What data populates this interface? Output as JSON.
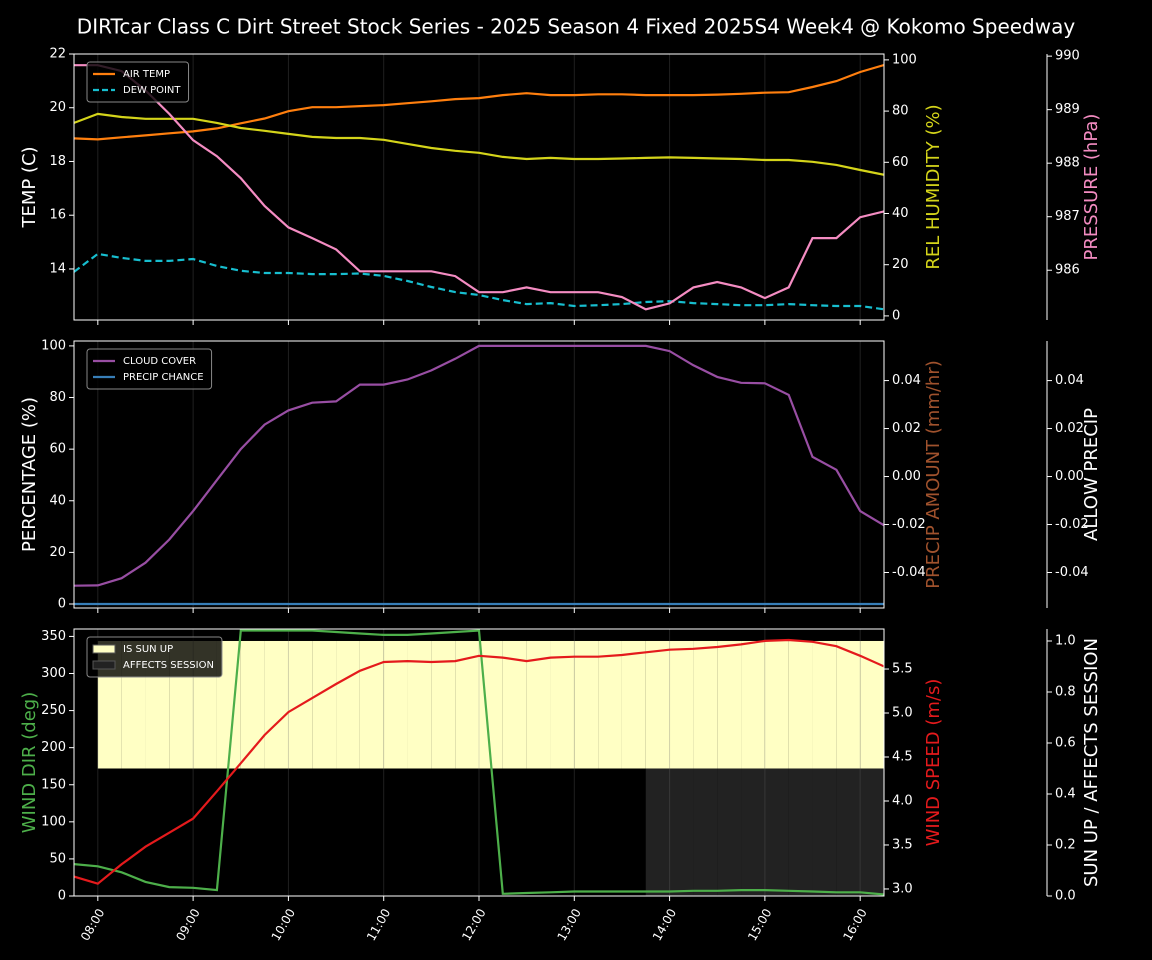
{
  "title": "DIRTcar Class C Dirt Street Stock Series - 2025 Season 4 Fixed 2025S4 Week4 @ Kokomo Speedway",
  "chart_data": [
    {
      "type": "line",
      "legend": "upper left",
      "grid": true,
      "ylabel": "TEMP (C)",
      "ylabel_color": "#ffffff",
      "y2label": "REL HUMIDITY (%)",
      "y2label_color": "#d4d41a",
      "y3label": "PRESSURE (hPa)",
      "y3label_color": "#f48cc2",
      "ylim": [
        12.1,
        22
      ],
      "yticks": [
        14,
        16,
        18,
        20,
        22
      ],
      "y2lim": [
        -1.6,
        102.3
      ],
      "y2ticks": [
        0,
        20,
        40,
        60,
        80,
        100
      ],
      "y3lim": [
        985.07,
        990.04
      ],
      "y3ticks": [
        986,
        987,
        988,
        989,
        990
      ],
      "series": [
        {
          "name": "AIR TEMP",
          "color": "#ff7f0e",
          "axis": "y",
          "linestyle": "solid",
          "values": [
            18.86,
            18.82,
            18.9,
            18.97,
            19.05,
            19.12,
            19.23,
            19.42,
            19.6,
            19.87,
            20.02,
            20.02,
            20.06,
            20.1,
            20.17,
            20.24,
            20.32,
            20.36,
            20.47,
            20.54,
            20.47,
            20.47,
            20.5,
            20.5,
            20.47,
            20.47,
            20.47,
            20.49,
            20.52,
            20.56,
            20.58,
            20.77,
            20.99,
            21.33,
            21.59
          ]
        },
        {
          "name": "DEW POINT",
          "color": "#17becf",
          "axis": "y",
          "linestyle": "dashed",
          "values": [
            13.89,
            14.56,
            14.41,
            14.3,
            14.3,
            14.37,
            14.11,
            13.93,
            13.85,
            13.85,
            13.81,
            13.81,
            13.83,
            13.74,
            13.55,
            13.33,
            13.14,
            13.03,
            12.84,
            12.69,
            12.73,
            12.62,
            12.65,
            12.69,
            12.77,
            12.8,
            12.73,
            12.69,
            12.65,
            12.65,
            12.69,
            12.65,
            12.62,
            12.62,
            12.5
          ]
        },
        {
          "color": "#d4d41a",
          "axis": "y2",
          "linestyle": "solid",
          "values": [
            75.4,
            78.9,
            77.7,
            77,
            77,
            77,
            75.4,
            73.4,
            72.3,
            71.1,
            69.9,
            69.5,
            69.5,
            68.8,
            67.2,
            65.6,
            64.5,
            63.7,
            62.1,
            61.3,
            61.7,
            61.3,
            61.3,
            61.5,
            61.7,
            61.9,
            61.7,
            61.5,
            61.3,
            60.9,
            60.9,
            60.2,
            59,
            57,
            55.1
          ]
        },
        {
          "color": "#f48cc2",
          "axis": "y3",
          "linestyle": "solid",
          "values": [
            989.83,
            989.83,
            989.72,
            989.36,
            988.92,
            988.43,
            988.13,
            987.72,
            987.2,
            986.8,
            986.6,
            986.39,
            985.98,
            985.98,
            985.98,
            985.98,
            985.89,
            985.59,
            985.59,
            985.68,
            985.59,
            985.59,
            985.59,
            985.5,
            985.27,
            985.38,
            985.68,
            985.78,
            985.68,
            985.48,
            985.68,
            986.6,
            986.6,
            986.99,
            987.1
          ]
        }
      ]
    },
    {
      "type": "line",
      "legend": "upper left",
      "grid": true,
      "ylabel": "PERCENTAGE (%)",
      "ylabel_color": "#ffffff",
      "y2label": "PRECIP AMOUNT (mm/hr)",
      "y2label_color": "#a0522d",
      "y3label": "ALLOW PRECIP",
      "y3label_color": "#ffffff",
      "ylim": [
        -1.55,
        101.9
      ],
      "yticks": [
        0,
        20,
        40,
        60,
        80,
        100
      ],
      "y2lim": [
        -0.0548,
        0.0565
      ],
      "y2ticks": [
        -0.04,
        -0.02,
        {
          "value": 0,
          "label": "0.00"
        },
        0.02,
        0.04
      ],
      "y3lim": [
        -0.0548,
        0.0565
      ],
      "y3ticks": [
        -0.04,
        -0.02,
        {
          "value": 0,
          "label": "0.00"
        },
        0.02,
        0.04
      ],
      "series": [
        {
          "name": "CLOUD COVER",
          "color": "#984ea3",
          "axis": "y",
          "linestyle": "solid",
          "values": [
            7.08,
            7.2,
            10,
            16,
            25,
            36,
            48,
            60,
            69.5,
            75,
            78,
            78.5,
            85,
            85,
            87,
            90.5,
            95,
            100,
            100,
            100,
            100,
            100,
            100,
            100,
            100,
            98,
            92.5,
            88,
            85.7,
            85.5,
            81,
            57,
            52,
            36,
            30.5
          ]
        },
        {
          "name": "PRECIP CHANCE",
          "color": "#377eb8",
          "axis": "y",
          "linestyle": "solid",
          "values": [
            0,
            0,
            0,
            0,
            0,
            0,
            0,
            0,
            0,
            0,
            0,
            0,
            0,
            0,
            0,
            0,
            0,
            0,
            0,
            0,
            0,
            0,
            0,
            0,
            0,
            0,
            0,
            0,
            0,
            0,
            0,
            0,
            0,
            0,
            0
          ]
        }
      ]
    },
    {
      "type": "line",
      "legend": "upper left",
      "grid": true,
      "ylabel": "WIND DIR (deg)",
      "ylabel_color": "#4daf4a",
      "y2label": "WIND SPEED (m/s)",
      "y2label_color": "#e41a1c",
      "y3label": "SUN UP / AFFECTS SESSION",
      "y3label_color": "#ffffff",
      "x": [
        null,
        "08:00",
        null,
        null,
        null,
        "09:00",
        null,
        null,
        null,
        "10:00",
        null,
        null,
        null,
        "11:00",
        null,
        null,
        null,
        "12:00",
        null,
        null,
        null,
        "13:00",
        null,
        null,
        null,
        "14:00",
        null,
        null,
        null,
        "15:00",
        null,
        null,
        null,
        "16:00",
        null
      ],
      "ylim": [
        0,
        360
      ],
      "yticks": [
        0,
        50,
        100,
        150,
        200,
        250,
        300,
        350
      ],
      "y2lim": [
        2.92,
        5.955
      ],
      "y2ticks": [
        {
          "value": 3,
          "label": "3.0"
        },
        3.5,
        {
          "value": 4,
          "label": "4.0"
        },
        4.5,
        {
          "value": 5,
          "label": "5.0"
        },
        5.5
      ],
      "y3lim": [
        0,
        1.047
      ],
      "y3ticks": [
        {
          "value": 0,
          "label": "0.0"
        },
        0.2,
        0.4,
        0.6,
        0.8,
        {
          "value": 1,
          "label": "1.0"
        }
      ],
      "series": [
        {
          "name": "IS SUN UP",
          "type": "fill",
          "color": "#ffffc4",
          "axis": "y3",
          "values": [
            0,
            1,
            1,
            1,
            1,
            1,
            1,
            1,
            1,
            1,
            1,
            1,
            1,
            1,
            1,
            1,
            1,
            1,
            1,
            1,
            1,
            1,
            1,
            1,
            1,
            1,
            1,
            1,
            1,
            1,
            1,
            1,
            1,
            1,
            1
          ]
        },
        {
          "name": "AFFECTS SESSION",
          "type": "fill",
          "color": "#222222",
          "axis": "y3",
          "values": [
            0,
            0,
            0,
            0,
            0,
            0,
            0,
            0,
            0,
            0,
            0,
            0,
            0,
            0,
            0,
            0,
            0,
            0,
            0,
            0,
            0,
            0,
            0,
            0,
            1,
            1,
            1,
            1,
            1,
            1,
            1,
            1,
            1,
            1,
            1
          ]
        },
        {
          "color": "#4daf4a",
          "axis": "y",
          "linestyle": "solid",
          "values": [
            43,
            40,
            32,
            19,
            12,
            11,
            8,
            358,
            358,
            358,
            358,
            356,
            354,
            352,
            352,
            354,
            356,
            358,
            3,
            4,
            5,
            6,
            6,
            6,
            6,
            6,
            7,
            7,
            8,
            8,
            7,
            6,
            5,
            5,
            2
          ]
        },
        {
          "color": "#e41a1c",
          "axis": "y2",
          "linestyle": "solid",
          "values": [
            3.14,
            3.06,
            3.28,
            3.48,
            3.64,
            3.8,
            4.11,
            4.43,
            4.75,
            5.01,
            5.17,
            5.33,
            5.48,
            5.58,
            5.59,
            5.58,
            5.59,
            5.65,
            5.63,
            5.59,
            5.63,
            5.64,
            5.64,
            5.66,
            5.69,
            5.72,
            5.73,
            5.75,
            5.78,
            5.82,
            5.83,
            5.81,
            5.76,
            5.65,
            5.53
          ]
        }
      ]
    }
  ]
}
